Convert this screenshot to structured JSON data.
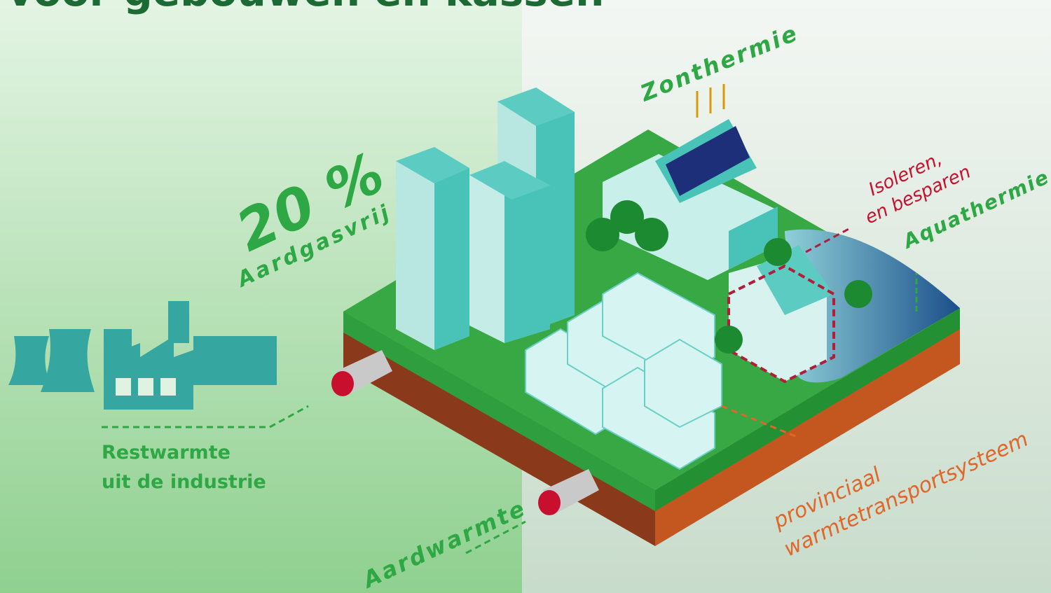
{
  "title": "voor gebouwen en kassen",
  "share": {
    "value": "20 %",
    "label": "Aardgasvrij"
  },
  "sources": {
    "solar": "Zonthermie",
    "water": "Aquathermie",
    "geo": "Aardwarmte"
  },
  "insulation": {
    "line1": "Isoleren,",
    "line2": "en besparen"
  },
  "industry": {
    "line1": "Restwarmte",
    "line2": "uit de industrie"
  },
  "network": {
    "line1": "provinciaal",
    "line2": "warmtetransportsysteem"
  }
}
